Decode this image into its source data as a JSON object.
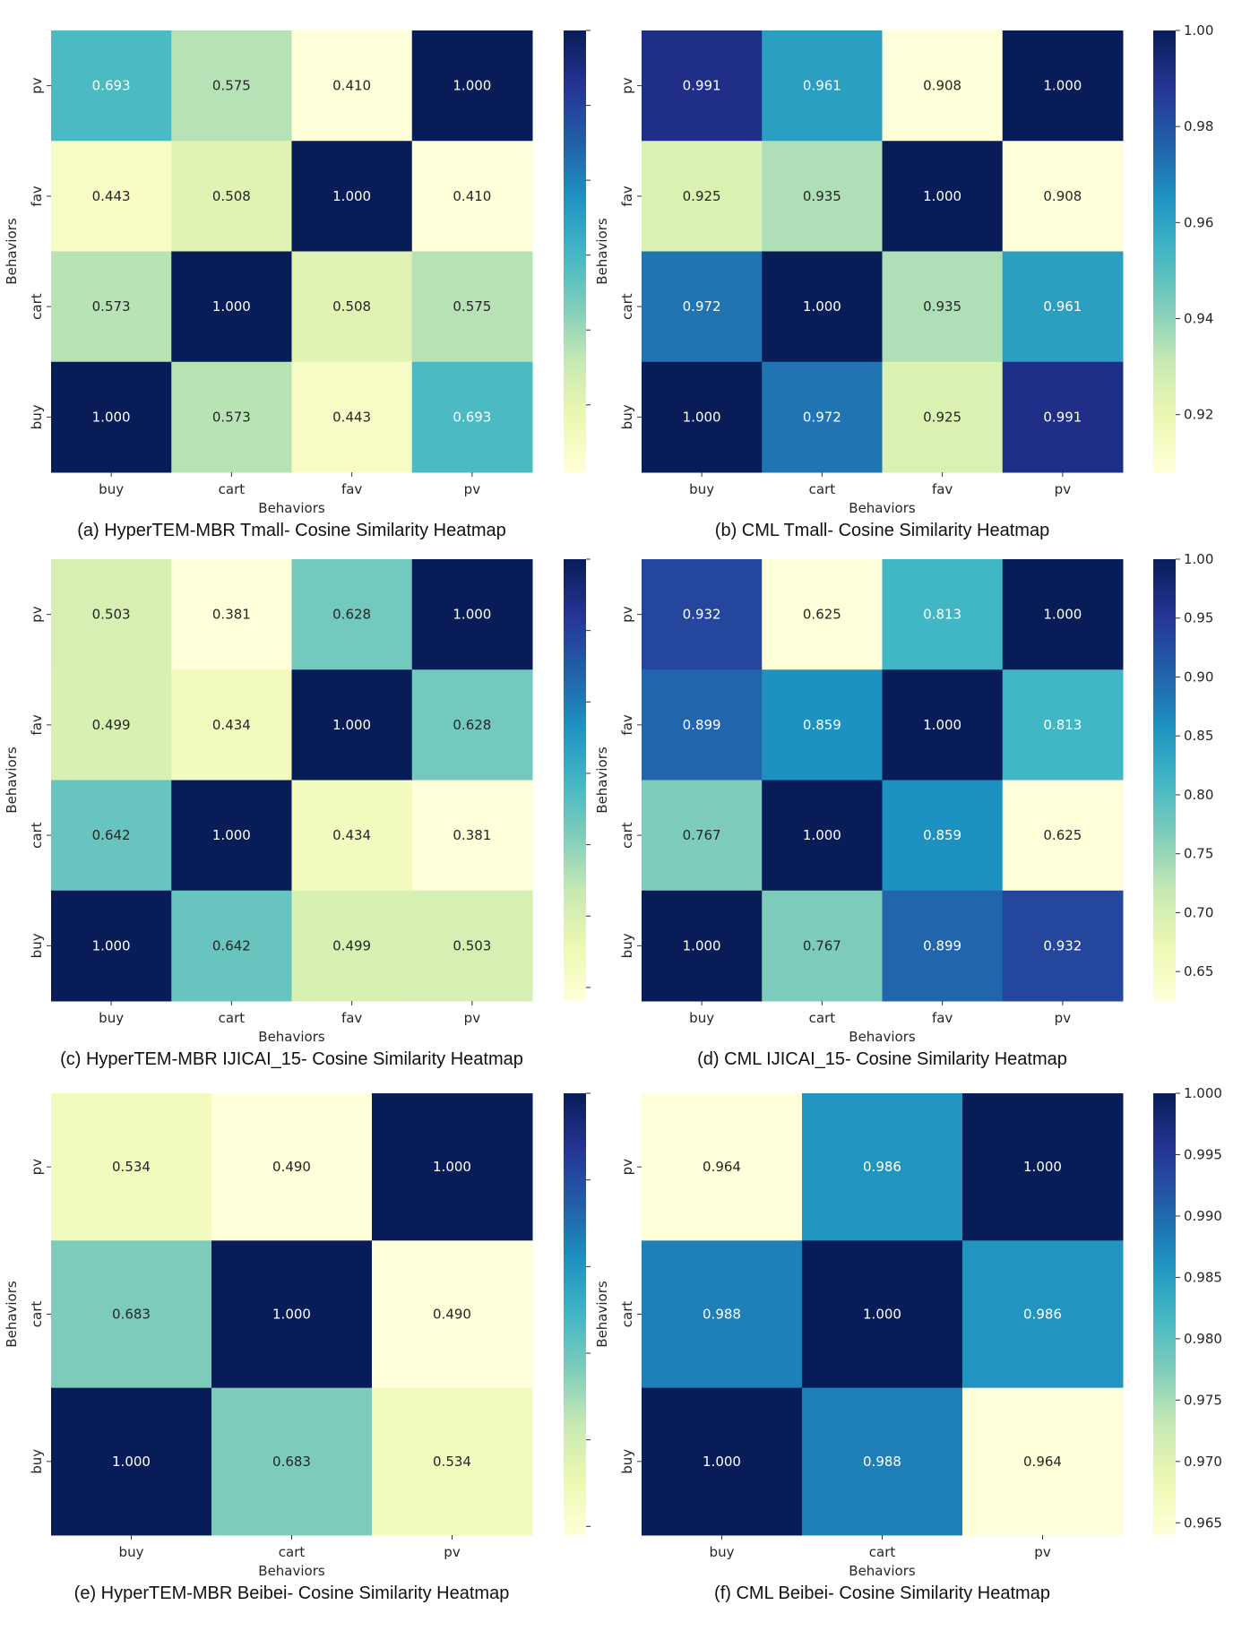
{
  "chart_data": [
    {
      "type": "heatmap",
      "caption": "(a) HyperTEM-MBR Tmall- Cosine Similarity Heatmap",
      "xlabel": "Behaviors",
      "ylabel": "Behaviors",
      "x_categories": [
        "buy",
        "cart",
        "fav",
        "pv"
      ],
      "y_categories": [
        "pv",
        "fav",
        "cart",
        "buy"
      ],
      "values": [
        [
          "0.693",
          "0.575",
          "0.410",
          "1.000"
        ],
        [
          "0.443",
          "0.508",
          "1.000",
          "0.410"
        ],
        [
          "0.573",
          "1.000",
          "0.508",
          "0.575"
        ],
        [
          "1.000",
          "0.573",
          "0.443",
          "0.693"
        ]
      ],
      "colormap": "YlGnBu",
      "vmin": 0.41,
      "vmax": 1.0,
      "colorbar_ticks": [
        1.0,
        0.9,
        0.8,
        0.7,
        0.6,
        0.5
      ],
      "colorbar_tick_labels": []
    },
    {
      "type": "heatmap",
      "caption": "(b) CML Tmall- Cosine Similarity Heatmap",
      "xlabel": "Behaviors",
      "ylabel": "Behaviors",
      "x_categories": [
        "buy",
        "cart",
        "fav",
        "pv"
      ],
      "y_categories": [
        "pv",
        "fav",
        "cart",
        "buy"
      ],
      "values": [
        [
          "0.991",
          "0.961",
          "0.908",
          "1.000"
        ],
        [
          "0.925",
          "0.935",
          "1.000",
          "0.908"
        ],
        [
          "0.972",
          "1.000",
          "0.935",
          "0.961"
        ],
        [
          "1.000",
          "0.972",
          "0.925",
          "0.991"
        ]
      ],
      "colormap": "YlGnBu",
      "vmin": 0.908,
      "vmax": 1.0,
      "colorbar_ticks": [
        1.0,
        0.98,
        0.96,
        0.94,
        0.92
      ],
      "colorbar_tick_labels": [
        "1.00",
        "0.98",
        "0.96",
        "0.94",
        "0.92"
      ]
    },
    {
      "type": "heatmap",
      "caption": "(c) HyperTEM-MBR IJICAI_15- Cosine Similarity Heatmap",
      "xlabel": "Behaviors",
      "ylabel": "Behaviors",
      "x_categories": [
        "buy",
        "cart",
        "fav",
        "pv"
      ],
      "y_categories": [
        "pv",
        "fav",
        "cart",
        "buy"
      ],
      "values": [
        [
          "0.503",
          "0.381",
          "0.628",
          "1.000"
        ],
        [
          "0.499",
          "0.434",
          "1.000",
          "0.628"
        ],
        [
          "0.642",
          "1.000",
          "0.434",
          "0.381"
        ],
        [
          "1.000",
          "0.642",
          "0.499",
          "0.503"
        ]
      ],
      "colormap": "YlGnBu",
      "vmin": 0.381,
      "vmax": 1.0,
      "colorbar_ticks": [
        1.0,
        0.9,
        0.8,
        0.7,
        0.6,
        0.5,
        0.4
      ],
      "colorbar_tick_labels": []
    },
    {
      "type": "heatmap",
      "caption": "(d) CML IJICAI_15- Cosine Similarity Heatmap",
      "xlabel": "Behaviors",
      "ylabel": "Behaviors",
      "x_categories": [
        "buy",
        "cart",
        "fav",
        "pv"
      ],
      "y_categories": [
        "pv",
        "fav",
        "cart",
        "buy"
      ],
      "values": [
        [
          "0.932",
          "0.625",
          "0.813",
          "1.000"
        ],
        [
          "0.899",
          "0.859",
          "1.000",
          "0.813"
        ],
        [
          "0.767",
          "1.000",
          "0.859",
          "0.625"
        ],
        [
          "1.000",
          "0.767",
          "0.899",
          "0.932"
        ]
      ],
      "colormap": "YlGnBu",
      "vmin": 0.625,
      "vmax": 1.0,
      "colorbar_ticks": [
        1.0,
        0.95,
        0.9,
        0.85,
        0.8,
        0.75,
        0.7,
        0.65
      ],
      "colorbar_tick_labels": [
        "1.00",
        "0.95",
        "0.90",
        "0.85",
        "0.80",
        "0.75",
        "0.70",
        "0.65"
      ]
    },
    {
      "type": "heatmap",
      "caption": "(e) HyperTEM-MBR Beibei- Cosine Similarity Heatmap",
      "xlabel": "Behaviors",
      "ylabel": "Behaviors",
      "x_categories": [
        "buy",
        "cart",
        "pv"
      ],
      "y_categories": [
        "pv",
        "cart",
        "buy"
      ],
      "values": [
        [
          "0.534",
          "0.490",
          "1.000"
        ],
        [
          "0.683",
          "1.000",
          "0.490"
        ],
        [
          "1.000",
          "0.683",
          "0.534"
        ]
      ],
      "colormap": "YlGnBu",
      "vmin": 0.49,
      "vmax": 1.0,
      "colorbar_ticks": [
        1.0,
        0.9,
        0.8,
        0.7,
        0.6,
        0.5
      ],
      "colorbar_tick_labels": []
    },
    {
      "type": "heatmap",
      "caption": "(f) CML Beibei- Cosine Similarity Heatmap",
      "xlabel": "Behaviors",
      "ylabel": "Behaviors",
      "x_categories": [
        "buy",
        "cart",
        "pv"
      ],
      "y_categories": [
        "pv",
        "cart",
        "buy"
      ],
      "values": [
        [
          "0.964",
          "0.986",
          "1.000"
        ],
        [
          "0.988",
          "1.000",
          "0.986"
        ],
        [
          "1.000",
          "0.988",
          "0.964"
        ]
      ],
      "colormap": "YlGnBu",
      "vmin": 0.964,
      "vmax": 1.0,
      "colorbar_ticks": [
        1.0,
        0.995,
        0.99,
        0.985,
        0.98,
        0.975,
        0.97,
        0.965
      ],
      "colorbar_tick_labels": [
        "1.000",
        "0.995",
        "0.990",
        "0.985",
        "0.980",
        "0.975",
        "0.970",
        "0.965"
      ]
    }
  ]
}
